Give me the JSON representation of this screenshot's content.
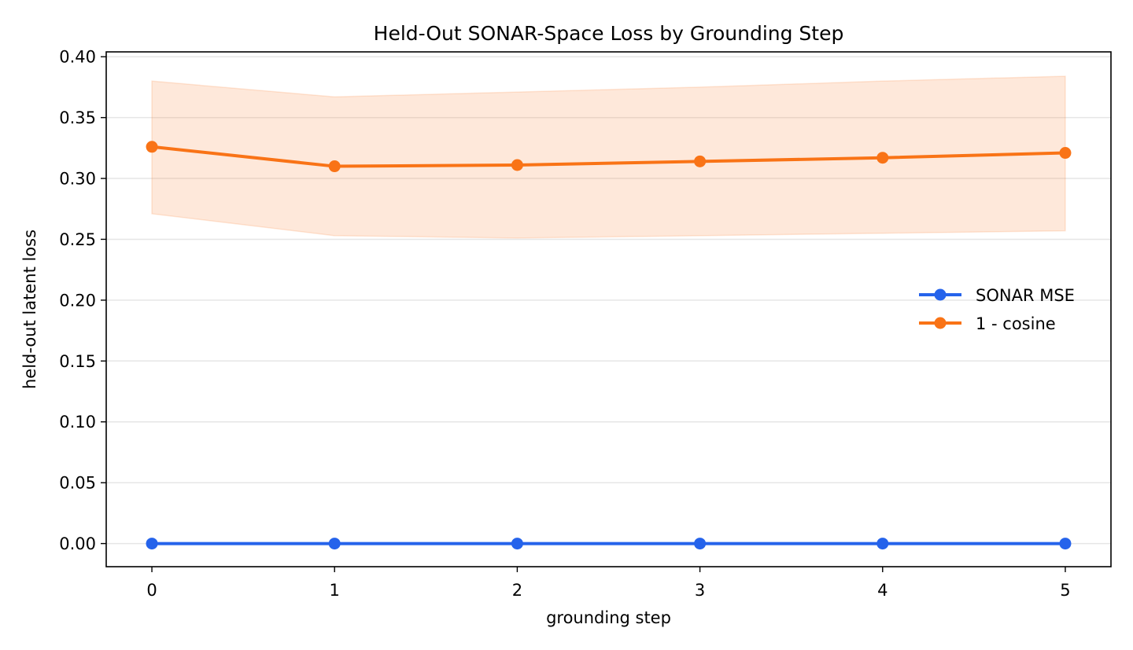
{
  "chart_data": {
    "type": "line",
    "title": "Held-Out SONAR-Space Loss by Grounding Step",
    "xlabel": "grounding step",
    "ylabel": "held-out latent loss",
    "x": [
      0,
      1,
      2,
      3,
      4,
      5
    ],
    "xticks": [
      "0",
      "1",
      "2",
      "3",
      "4",
      "5"
    ],
    "xlim": [
      -0.25,
      5.25
    ],
    "ylim": [
      -0.019,
      0.404
    ],
    "yticks": [
      "0.00",
      "0.05",
      "0.10",
      "0.15",
      "0.20",
      "0.25",
      "0.30",
      "0.35",
      "0.40"
    ],
    "grid": "horizontal",
    "legend_position": "right",
    "series": [
      {
        "name": "SONAR MSE",
        "values": [
          0.0,
          0.0,
          0.0,
          0.0,
          0.0,
          0.0
        ],
        "color": "#2563eb"
      },
      {
        "name": "1 - cosine",
        "values": [
          0.326,
          0.31,
          0.311,
          0.314,
          0.317,
          0.321
        ],
        "band_upper": [
          0.38,
          0.367,
          0.371,
          0.375,
          0.38,
          0.384
        ],
        "band_lower": [
          0.271,
          0.253,
          0.251,
          0.253,
          0.255,
          0.257
        ],
        "color": "#f97316"
      }
    ]
  }
}
